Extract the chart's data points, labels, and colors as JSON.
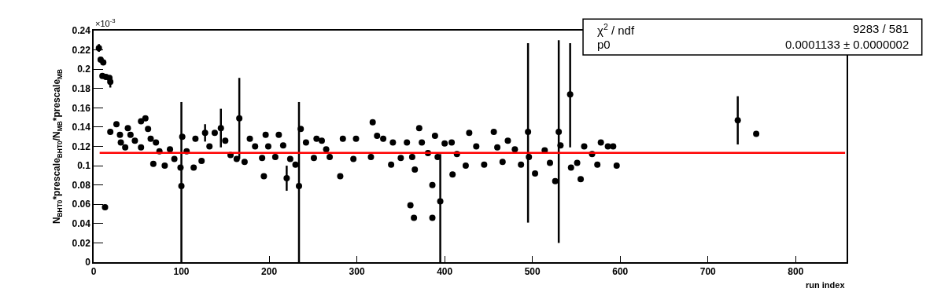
{
  "chart_data": {
    "type": "scatter",
    "xlabel": "run index",
    "ylabel": "N$_{BHT0}$*prescale$_{BHT0}$/N$_{MB}$*prescale$_{MB}$",
    "annotations": [
      "×10$^{-3}$",
      "χ$^{2}$ / ndf",
      "9283 / 581",
      "p0",
      "0.0001133 ± 0.0000002"
    ],
    "x": [
      6,
      8,
      10,
      11,
      13,
      14,
      18,
      19,
      19,
      26,
      30,
      31,
      36,
      39,
      42,
      47,
      54,
      54,
      59,
      62,
      65,
      68,
      71,
      75,
      81,
      87,
      92,
      99,
      100,
      101,
      106,
      114,
      116,
      123,
      127,
      132,
      138,
      145,
      150,
      156,
      163,
      166,
      172,
      178,
      184,
      192,
      194,
      196,
      199,
      207,
      211,
      216,
      220,
      224,
      230,
      234,
      236,
      242,
      251,
      254,
      260,
      265,
      269,
      281,
      284,
      296,
      299,
      316,
      318,
      323,
      330,
      339,
      341,
      350,
      357,
      361,
      363,
      365,
      366,
      371,
      374,
      381,
      386,
      386,
      389,
      392,
      395,
      400,
      408,
      409,
      414,
      424,
      428,
      436,
      445,
      456,
      460,
      466,
      472,
      480,
      487,
      495,
      496,
      503,
      514,
      520,
      526,
      530,
      532,
      543,
      544,
      551,
      555,
      559,
      568,
      574,
      578,
      586,
      592,
      596,
      734,
      755
    ],
    "series": [
      {
        "color": "#000000",
        "values": [
          0.222,
          0.21,
          0.193,
          0.207,
          0.057,
          0.192,
          0.191,
          0.187,
          0.135,
          0.143,
          0.132,
          0.124,
          0.119,
          0.139,
          0.132,
          0.126,
          0.119,
          0.146,
          0.149,
          0.138,
          0.128,
          0.102,
          0.124,
          0.115,
          0.1,
          0.117,
          0.107,
          0.098,
          0.079,
          0.13,
          0.115,
          0.098,
          0.128,
          0.105,
          0.134,
          0.12,
          0.134,
          0.139,
          0.126,
          0.111,
          0.107,
          0.149,
          0.104,
          0.128,
          0.12,
          0.108,
          0.089,
          0.132,
          0.12,
          0.109,
          0.132,
          0.121,
          0.087,
          0.107,
          0.101,
          0.079,
          0.138,
          0.124,
          0.108,
          0.128,
          0.126,
          0.117,
          0.109,
          0.089,
          0.128,
          0.107,
          0.128,
          0.109,
          0.145,
          0.131,
          0.128,
          0.101,
          0.124,
          0.108,
          0.124,
          0.059,
          0.109,
          0.046,
          0.096,
          0.139,
          0.124,
          0.113,
          0.08,
          0.046,
          0.131,
          0.109,
          0.063,
          0.123,
          0.124,
          0.091,
          0.112,
          0.1,
          0.134,
          0.12,
          0.101,
          0.135,
          0.119,
          0.104,
          0.126,
          0.117,
          0.101,
          0.135,
          0.109,
          0.092,
          0.116,
          0.103,
          0.084,
          0.135,
          0.121,
          0.174,
          0.098,
          0.103,
          0.086,
          0.12,
          0.112,
          0.101,
          0.124,
          0.12,
          0.12,
          0.1,
          0.147,
          0.133
        ],
        "errors": [
          0.004,
          null,
          null,
          null,
          null,
          null,
          null,
          0.006,
          null,
          null,
          null,
          null,
          null,
          null,
          null,
          null,
          null,
          null,
          null,
          null,
          null,
          null,
          null,
          null,
          null,
          null,
          null,
          null,
          [
            0,
            0.166
          ],
          null,
          null,
          null,
          null,
          null,
          0.009,
          null,
          null,
          0.02,
          null,
          null,
          null,
          0.042,
          null,
          null,
          null,
          null,
          null,
          null,
          null,
          null,
          null,
          null,
          0.013,
          null,
          null,
          [
            0,
            0.166
          ],
          null,
          null,
          null,
          null,
          null,
          null,
          null,
          null,
          null,
          null,
          null,
          null,
          null,
          null,
          null,
          null,
          null,
          null,
          null,
          null,
          null,
          null,
          null,
          null,
          null,
          null,
          null,
          null,
          null,
          null,
          [
            0,
            0.112
          ],
          null,
          null,
          null,
          null,
          null,
          null,
          null,
          null,
          null,
          null,
          null,
          null,
          null,
          null,
          [
            0.041,
            0.227
          ],
          null,
          null,
          null,
          null,
          null,
          [
            0.02,
            0.23
          ],
          null,
          [
            0.119,
            0.227
          ],
          null,
          null,
          null,
          null,
          null,
          null,
          null,
          null,
          null,
          null,
          0.025,
          null
        ]
      }
    ],
    "xlim": [
      0,
      858
    ],
    "xticks": [
      0,
      100,
      200,
      300,
      400,
      500,
      600,
      700,
      800
    ],
    "ylim": [
      0,
      0.24
    ],
    "yticks": [
      0,
      0.02,
      0.04,
      0.06,
      0.08,
      0.1,
      0.12,
      0.14,
      0.16,
      0.18,
      0.2,
      0.22,
      0.24
    ],
    "ref_lines": [
      {
        "axis": "y",
        "value": 0.1133,
        "color": "#ff0000"
      }
    ],
    "marker": "circle"
  }
}
